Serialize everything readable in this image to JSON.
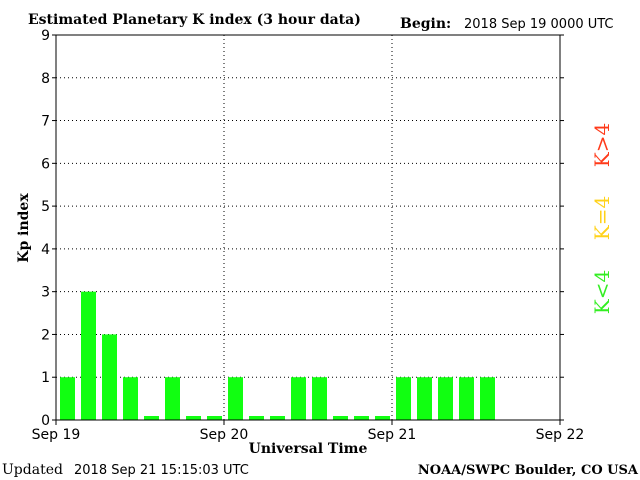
{
  "header": {
    "title": "Estimated Planetary K index (3 hour data)",
    "begin_label": "Begin:",
    "begin_value": "2018 Sep 19 0000 UTC"
  },
  "footer": {
    "updated_label": "Updated",
    "updated_value": "2018 Sep 21 15:15:03 UTC",
    "source": "NOAA/SWPC Boulder, CO USA"
  },
  "legend": [
    {
      "label": "K>4",
      "color": "#ff3a1a"
    },
    {
      "label": "K=4",
      "color": "#ffd21a"
    },
    {
      "label": "K<4",
      "color": "#33ee22"
    }
  ],
  "chart_data": {
    "type": "bar",
    "title": "Estimated Planetary K index (3 hour data)",
    "xlabel": "Universal Time",
    "ylabel": "Kp index",
    "ylim": [
      0,
      9
    ],
    "yticks": [
      0,
      1,
      2,
      3,
      4,
      5,
      6,
      7,
      8,
      9
    ],
    "xticks": [
      "Sep 19",
      "Sep 20",
      "Sep 21",
      "Sep 22"
    ],
    "bars_per_day": 8,
    "grid": true,
    "bar_color": "#11ff11",
    "values": [
      1,
      3,
      2,
      1,
      0,
      1,
      0,
      0,
      1,
      0,
      0,
      1,
      1,
      0,
      0,
      0,
      1,
      1,
      1,
      1,
      1
    ]
  }
}
